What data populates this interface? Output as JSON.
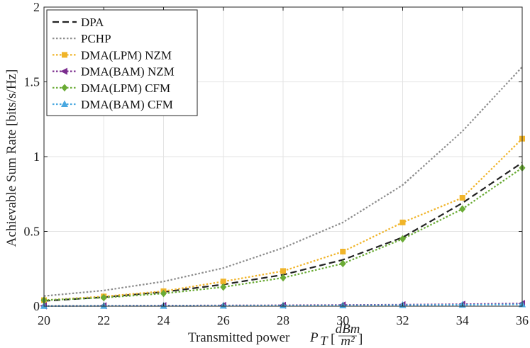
{
  "chart_data": {
    "type": "line",
    "title": "",
    "xlabel": "Transmitted power",
    "xlabel_symbol": "P",
    "xlabel_subscript": "T",
    "xlabel_unit_numerator": "dBm",
    "xlabel_unit_denominator": "m²",
    "ylabel": "Achievable Sum Rate [bits/s/Hz]",
    "xlim": [
      20,
      36
    ],
    "ylim": [
      0,
      2
    ],
    "x_ticks": [
      20,
      22,
      24,
      26,
      28,
      30,
      32,
      34,
      36
    ],
    "x_tick_labels": [
      "20",
      "22",
      "24",
      "26",
      "28",
      "30",
      "32",
      "34",
      "36"
    ],
    "y_ticks": [
      0,
      0.5,
      1,
      1.5,
      2
    ],
    "y_tick_labels": [
      "0",
      "0.5",
      "1",
      "1.5",
      "2"
    ],
    "grid": true,
    "legend_position": "top-left",
    "x": [
      20,
      22,
      24,
      26,
      28,
      30,
      32,
      34,
      36
    ],
    "series": [
      {
        "name": "DPA",
        "color": "#222222",
        "dash": "dashed",
        "marker": "none",
        "values": [
          0.035,
          0.06,
          0.095,
          0.145,
          0.21,
          0.31,
          0.46,
          0.69,
          0.96
        ]
      },
      {
        "name": "PCHP",
        "color": "#8c8c8c",
        "dash": "dotted",
        "marker": "none",
        "values": [
          0.068,
          0.105,
          0.165,
          0.255,
          0.39,
          0.56,
          0.81,
          1.17,
          1.6
        ]
      },
      {
        "name": "DMA(LPM) NZM",
        "color": "#f0b429",
        "dash": "dotted",
        "marker": "square",
        "values": [
          0.04,
          0.065,
          0.1,
          0.165,
          0.235,
          0.365,
          0.56,
          0.725,
          1.12
        ]
      },
      {
        "name": "DMA(BAM) NZM",
        "color": "#7b2d8e",
        "dash": "dotted",
        "marker": "triangle-left",
        "values": [
          0.002,
          0.003,
          0.004,
          0.005,
          0.006,
          0.008,
          0.01,
          0.013,
          0.018
        ]
      },
      {
        "name": "DMA(LPM) CFM",
        "color": "#6aab35",
        "dash": "dotted",
        "marker": "diamond",
        "values": [
          0.04,
          0.057,
          0.085,
          0.128,
          0.19,
          0.285,
          0.45,
          0.65,
          0.925
        ]
      },
      {
        "name": "DMA(BAM) CFM",
        "color": "#4aa8e0",
        "dash": "dotted",
        "marker": "triangle-up",
        "values": [
          0.001,
          0.002,
          0.002,
          0.003,
          0.004,
          0.005,
          0.007,
          0.009,
          0.012
        ]
      }
    ]
  }
}
